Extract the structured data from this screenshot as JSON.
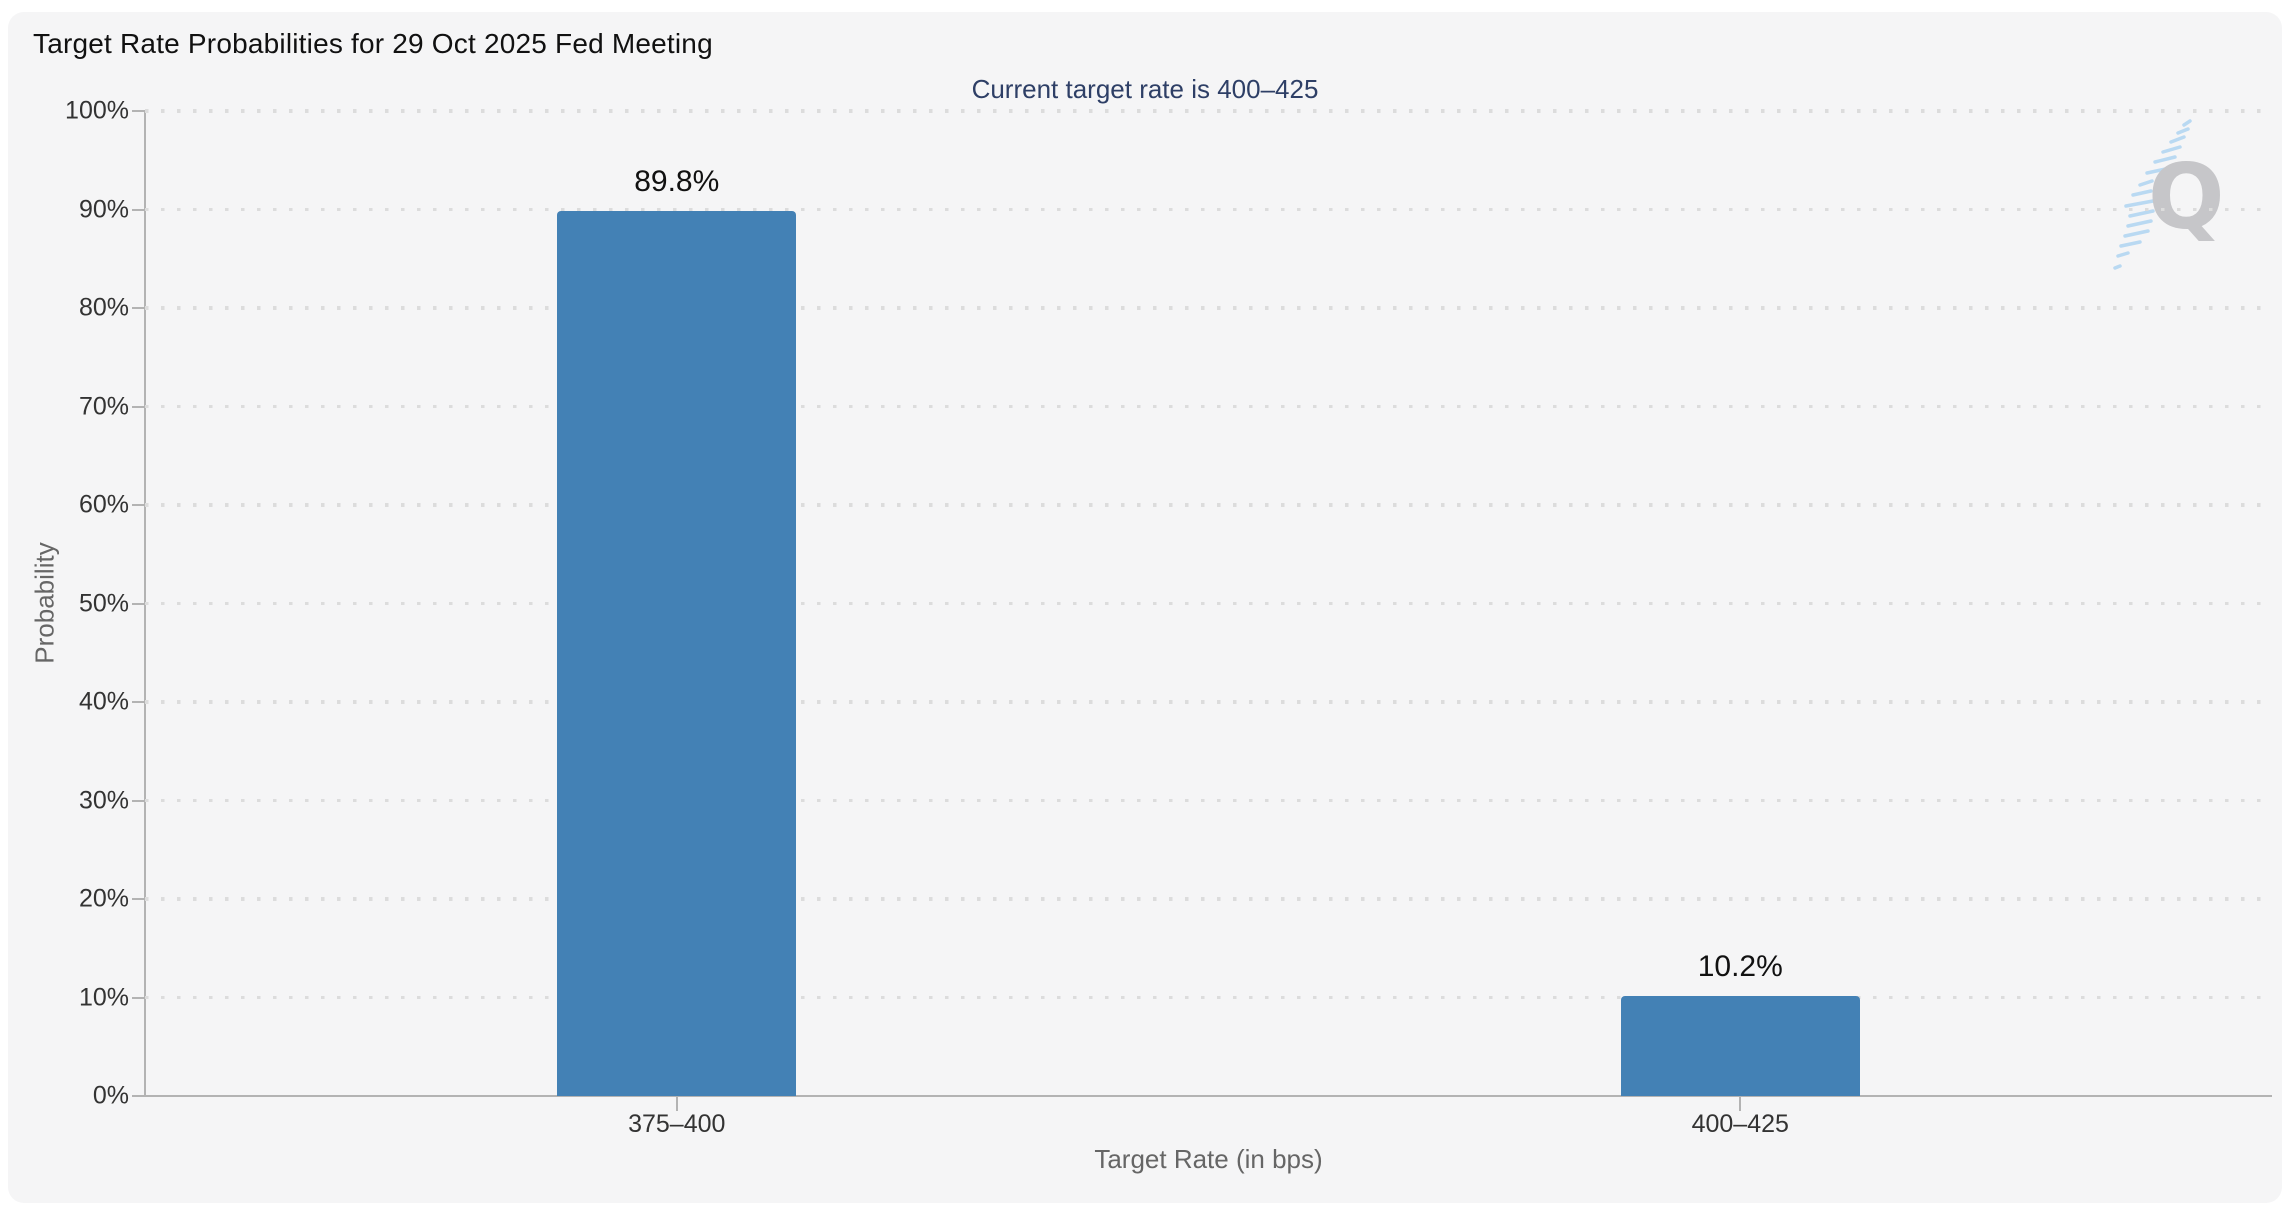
{
  "chart_data": {
    "type": "bar",
    "title": "Target Rate Probabilities for 29 Oct 2025 Fed Meeting",
    "subtitle": "Current target rate is 400–425",
    "categories": [
      "375–400",
      "400–425"
    ],
    "values": [
      89.8,
      10.2
    ],
    "value_labels": [
      "89.8%",
      "10.2%"
    ],
    "xlabel": "Target Rate (in bps)",
    "ylabel": "Probability",
    "ylim": [
      0,
      100
    ],
    "yticks": [
      "0%",
      "10%",
      "20%",
      "30%",
      "40%",
      "50%",
      "60%",
      "70%",
      "80%",
      "90%",
      "100%"
    ],
    "grid": "horizontal-dotted",
    "legend": "none",
    "bar_color": "#4381b5"
  },
  "menu": {
    "icon": "hamburger-icon"
  },
  "watermark": {
    "letter": "Q"
  },
  "colors": {
    "page_bg": "#ffffff",
    "panel_bg": "#f5f5f6",
    "title_text": "#111111",
    "subtitle_text": "#2e3f66",
    "tick_text": "#333333",
    "axis_title_text": "#666666",
    "grid_dot": "#dcdcdc",
    "axis_line": "#b3b3b3",
    "bar": "#4381b5",
    "value_label_text": "#111111",
    "menu_icon": "#666666",
    "watermark_q": "#c6c6c9",
    "watermark_lines": "#b9d9f2"
  }
}
